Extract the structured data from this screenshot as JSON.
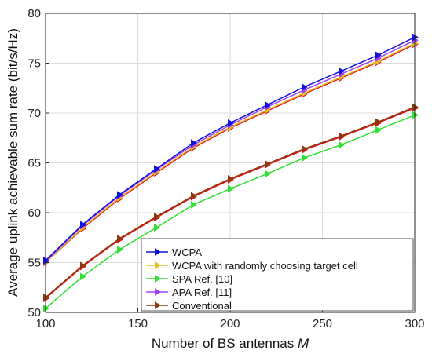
{
  "chart_data": {
    "type": "line",
    "xlabel": "Number of BS antennas",
    "xlabel_var": "M",
    "ylabel": "Average uplink achievable sum rate (bit/s/Hz)",
    "xlim": [
      100,
      300
    ],
    "ylim": [
      50,
      80
    ],
    "xticks": [
      100,
      150,
      200,
      250,
      300
    ],
    "yticks": [
      50,
      55,
      60,
      65,
      70,
      75,
      80
    ],
    "grid": true,
    "legend_position": "bottom-right",
    "x": [
      100,
      120,
      140,
      160,
      180,
      200,
      220,
      240,
      260,
      280,
      300
    ],
    "series": [
      {
        "name": "WCPA",
        "color": "#1010e0",
        "values": [
          55.2,
          58.8,
          61.8,
          64.4,
          67.0,
          69.0,
          70.8,
          72.6,
          74.2,
          75.8,
          77.6
        ]
      },
      {
        "name": "WCPA with randomly choosing target cell",
        "color": "#e0c020",
        "values": [
          55.0,
          58.5,
          61.5,
          64.1,
          66.6,
          68.6,
          70.3,
          72.0,
          73.6,
          75.2,
          77.0
        ]
      },
      {
        "name": "SPA Ref. [10]",
        "color": "#30e030",
        "values": [
          50.4,
          53.6,
          56.3,
          58.5,
          60.8,
          62.4,
          63.9,
          65.5,
          66.8,
          68.3,
          69.8
        ]
      },
      {
        "name": "APA Ref. [11]",
        "color": "#a040f0",
        "values": [
          55.1,
          58.7,
          61.7,
          64.3,
          66.8,
          68.8,
          70.6,
          72.3,
          73.9,
          75.5,
          77.3
        ]
      },
      {
        "name": "Conventional",
        "color": "#8b3a0a",
        "values": [
          51.5,
          54.7,
          57.4,
          59.6,
          61.7,
          63.4,
          64.9,
          66.4,
          67.7,
          69.1,
          70.6
        ]
      },
      {
        "name": "",
        "color": "#e81020",
        "values": [
          51.4,
          54.6,
          57.3,
          59.5,
          61.6,
          63.3,
          64.8,
          66.3,
          67.6,
          69.0,
          70.5
        ]
      },
      {
        "name": "",
        "color": "#e81020",
        "values": [
          55.0,
          58.4,
          61.4,
          64.0,
          66.5,
          68.5,
          70.2,
          71.9,
          73.5,
          75.1,
          76.9
        ]
      }
    ]
  }
}
